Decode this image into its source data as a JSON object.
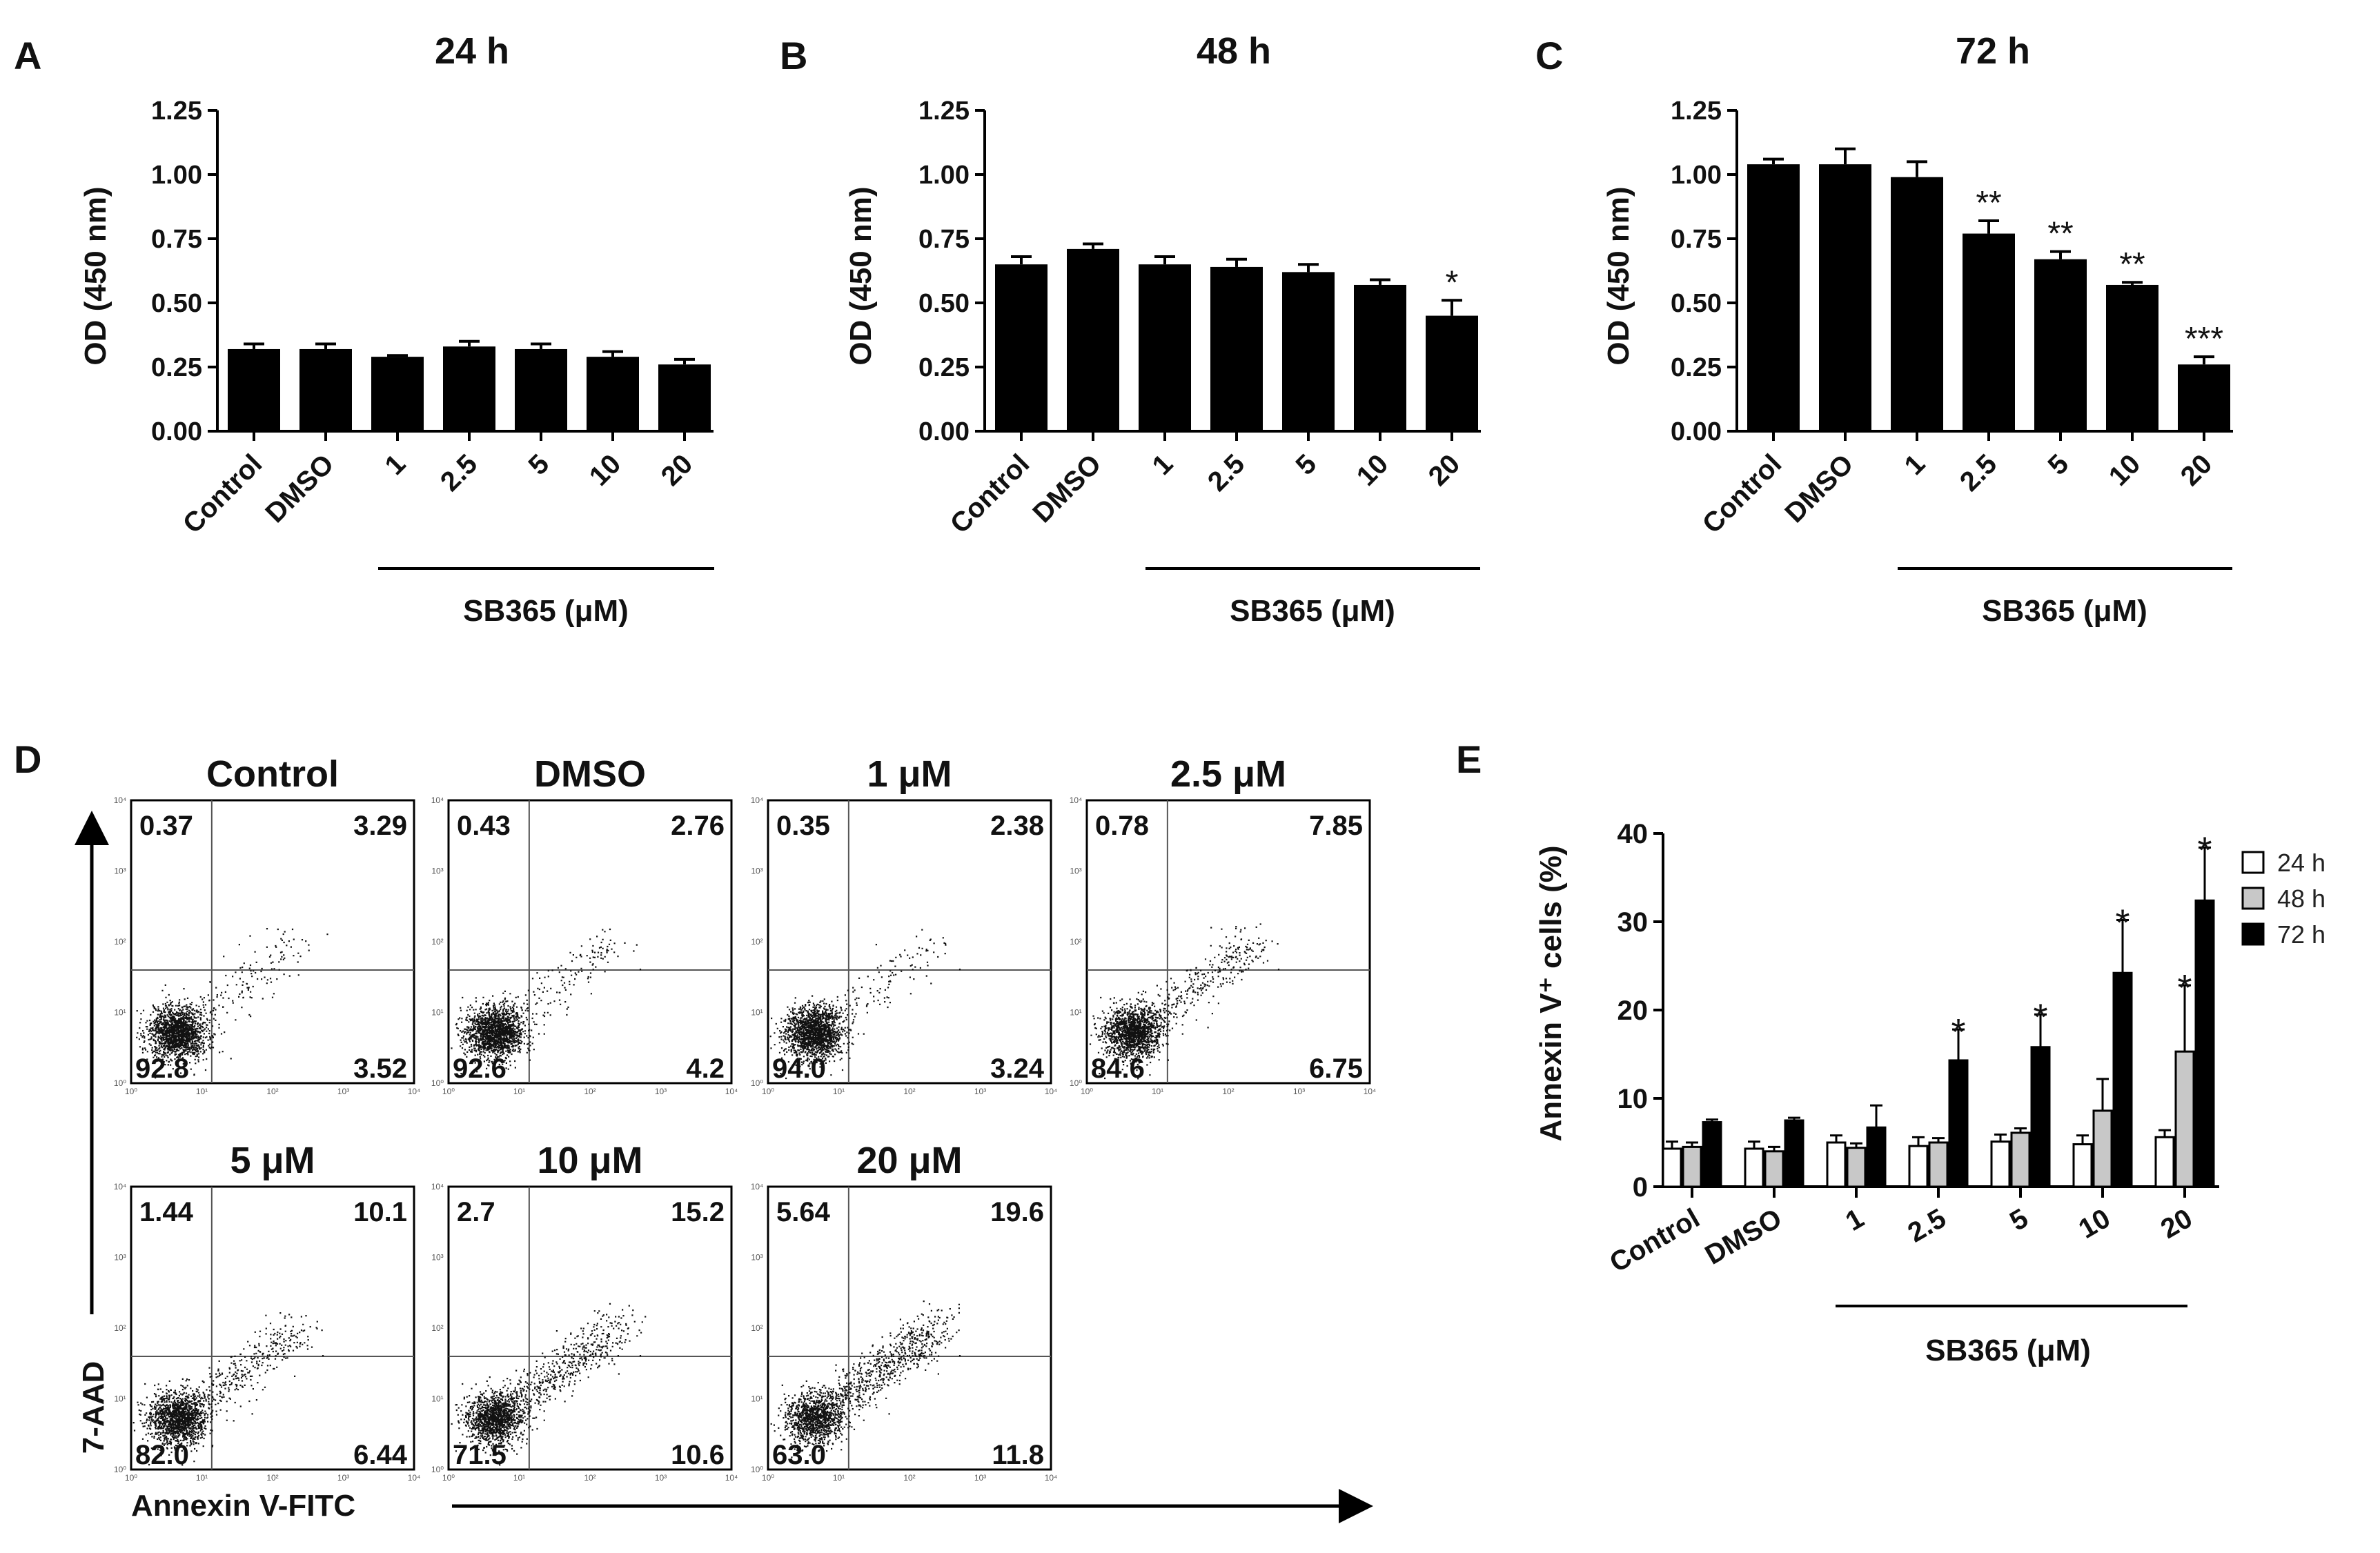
{
  "chart_data": [
    {
      "panel": "A",
      "type": "bar",
      "title": "24 h",
      "ylabel": "OD (450 nm)",
      "ylim": [
        0,
        1.25
      ],
      "yticks": [
        "0.00",
        "0.25",
        "0.50",
        "0.75",
        "1.00",
        "1.25"
      ],
      "categories": [
        "Control",
        "DMSO",
        "1",
        "2.5",
        "5",
        "10",
        "20"
      ],
      "values": [
        0.32,
        0.32,
        0.29,
        0.33,
        0.32,
        0.29,
        0.26
      ],
      "errors": [
        0.02,
        0.02,
        0.005,
        0.02,
        0.02,
        0.02,
        0.02
      ],
      "significance": [
        "",
        "",
        "",
        "",
        "",
        "",
        ""
      ],
      "group_label": "SB365 (μM)"
    },
    {
      "panel": "B",
      "type": "bar",
      "title": "48 h",
      "ylabel": "OD (450 nm)",
      "ylim": [
        0,
        1.25
      ],
      "yticks": [
        "0.00",
        "0.25",
        "0.50",
        "0.75",
        "1.00",
        "1.25"
      ],
      "categories": [
        "Control",
        "DMSO",
        "1",
        "2.5",
        "5",
        "10",
        "20"
      ],
      "values": [
        0.65,
        0.71,
        0.65,
        0.64,
        0.62,
        0.57,
        0.45
      ],
      "errors": [
        0.03,
        0.02,
        0.03,
        0.03,
        0.03,
        0.02,
        0.06
      ],
      "significance": [
        "",
        "",
        "",
        "",
        "",
        "",
        "*"
      ],
      "group_label": "SB365 (μM)"
    },
    {
      "panel": "C",
      "type": "bar",
      "title": "72 h",
      "ylabel": "OD (450 nm)",
      "ylim": [
        0,
        1.25
      ],
      "yticks": [
        "0.00",
        "0.25",
        "0.50",
        "0.75",
        "1.00",
        "1.25"
      ],
      "categories": [
        "Control",
        "DMSO",
        "1",
        "2.5",
        "5",
        "10",
        "20"
      ],
      "values": [
        1.04,
        1.04,
        0.99,
        0.77,
        0.67,
        0.57,
        0.26
      ],
      "errors": [
        0.02,
        0.06,
        0.06,
        0.05,
        0.03,
        0.01,
        0.03
      ],
      "significance": [
        "",
        "",
        "",
        "**",
        "**",
        "**",
        "***"
      ],
      "group_label": "SB365 (μM)"
    },
    {
      "panel": "D",
      "type": "scatter",
      "xlabel": "Annexin V-FITC",
      "ylabel": "7-AAD",
      "axis_ticks": [
        "10⁰",
        "10¹",
        "10²",
        "10³",
        "10⁴"
      ],
      "plots": [
        {
          "title": "Control",
          "quadrants": {
            "ul": "0.37",
            "ur": "3.29",
            "ll": "92.8",
            "lr": "3.52"
          }
        },
        {
          "title": "DMSO",
          "quadrants": {
            "ul": "0.43",
            "ur": "2.76",
            "ll": "92.6",
            "lr": "4.2"
          }
        },
        {
          "title": "1 μM",
          "quadrants": {
            "ul": "0.35",
            "ur": "2.38",
            "ll": "94.0",
            "lr": "3.24"
          }
        },
        {
          "title": "2.5 μM",
          "quadrants": {
            "ul": "0.78",
            "ur": "7.85",
            "ll": "84.6",
            "lr": "6.75"
          }
        },
        {
          "title": "5 μM",
          "quadrants": {
            "ul": "1.44",
            "ur": "10.1",
            "ll": "82.0",
            "lr": "6.44"
          }
        },
        {
          "title": "10 μM",
          "quadrants": {
            "ul": "2.7",
            "ur": "15.2",
            "ll": "71.5",
            "lr": "10.6"
          }
        },
        {
          "title": "20 μM",
          "quadrants": {
            "ul": "5.64",
            "ur": "19.6",
            "ll": "63.0",
            "lr": "11.8"
          }
        }
      ]
    },
    {
      "panel": "E",
      "type": "bar",
      "ylabel": "Annexin V⁺ cells (%)",
      "ylim": [
        0,
        40
      ],
      "yticks": [
        "0",
        "10",
        "20",
        "30",
        "40"
      ],
      "categories": [
        "Control",
        "DMSO",
        "1",
        "2.5",
        "5",
        "10",
        "20"
      ],
      "group_label": "SB365 (μM)",
      "series": [
        {
          "name": "24 h",
          "color": "#ffffff",
          "values": [
            4.3,
            4.3,
            5.0,
            4.6,
            5.1,
            4.8,
            5.6
          ],
          "errors": [
            0.8,
            0.8,
            0.8,
            1.0,
            0.8,
            1.0,
            0.8
          ],
          "significance": [
            "",
            "",
            "",
            "",
            "",
            "",
            ""
          ]
        },
        {
          "name": "48 h",
          "color": "#c8c8c8",
          "values": [
            4.5,
            4.0,
            4.4,
            5.0,
            6.1,
            8.6,
            15.3
          ],
          "errors": [
            0.5,
            0.5,
            0.5,
            0.5,
            0.5,
            3.6,
            7.5
          ],
          "significance": [
            "",
            "",
            "",
            "",
            "",
            "",
            "*"
          ]
        },
        {
          "name": "72 h",
          "color": "#000000",
          "values": [
            7.3,
            7.5,
            6.7,
            14.3,
            15.8,
            24.2,
            32.4
          ],
          "errors": [
            0.3,
            0.3,
            2.5,
            3.5,
            3.7,
            6.0,
            6.0
          ],
          "significance": [
            "",
            "",
            "",
            "*",
            "*",
            "*",
            "*"
          ]
        }
      ]
    }
  ]
}
